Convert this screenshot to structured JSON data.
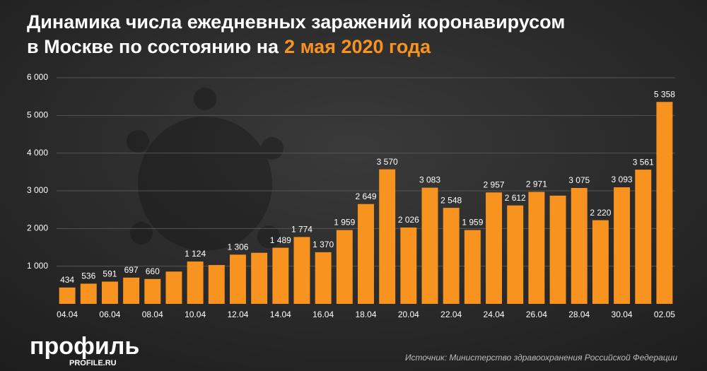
{
  "chart_data": {
    "type": "bar",
    "title_line1": "Динамика числа ежедневных заражений коронавирусом",
    "title_line2": "в Москве по состоянию на",
    "title_date": "2 мая 2020 года",
    "categories": [
      "04.04",
      null,
      "06.04",
      null,
      "08.04",
      null,
      "10.04",
      null,
      "12.04",
      null,
      "14.04",
      null,
      "16.04",
      null,
      "18.04",
      null,
      "20.04",
      null,
      "22.04",
      null,
      "24.04",
      null,
      "26.04",
      null,
      "28.04",
      null,
      "30.04",
      null,
      "02.05"
    ],
    "values": [
      434,
      536,
      591,
      697,
      660,
      857,
      1124,
      1030,
      1306,
      1355,
      1489,
      1774,
      1370,
      1959,
      2649,
      3570,
      2026,
      3083,
      2548,
      1959,
      2957,
      2612,
      2971,
      2871,
      3075,
      2220,
      3093,
      3561,
      5358
    ],
    "value_labels": [
      "434",
      "536",
      "591",
      "697",
      "660",
      null,
      "1 124",
      null,
      "1 306",
      null,
      "1 489",
      "1 774",
      "1 370",
      "1 959",
      "2 649",
      "3 570",
      "2 026",
      "3 083",
      "2 548",
      "1 959",
      "2 957",
      "2 612",
      "2 971",
      null,
      "3 075",
      "2 220",
      "3 093",
      "3 561",
      "5 358"
    ],
    "color": "#f7931e",
    "ylim": [
      0,
      6000
    ],
    "yticks": [
      {
        "value": 1000,
        "label": "1 000"
      },
      {
        "value": 2000,
        "label": "2 000"
      },
      {
        "value": 3000,
        "label": "3 000"
      },
      {
        "value": 4000,
        "label": "4 000"
      },
      {
        "value": 5000,
        "label": "5 000"
      },
      {
        "value": 6000,
        "label": "6 000"
      }
    ],
    "grid": true,
    "source": "Источник: Министерство здравоохранения Российской Федерации",
    "logo": "профиль",
    "logo_url": "PROFILE.RU"
  }
}
